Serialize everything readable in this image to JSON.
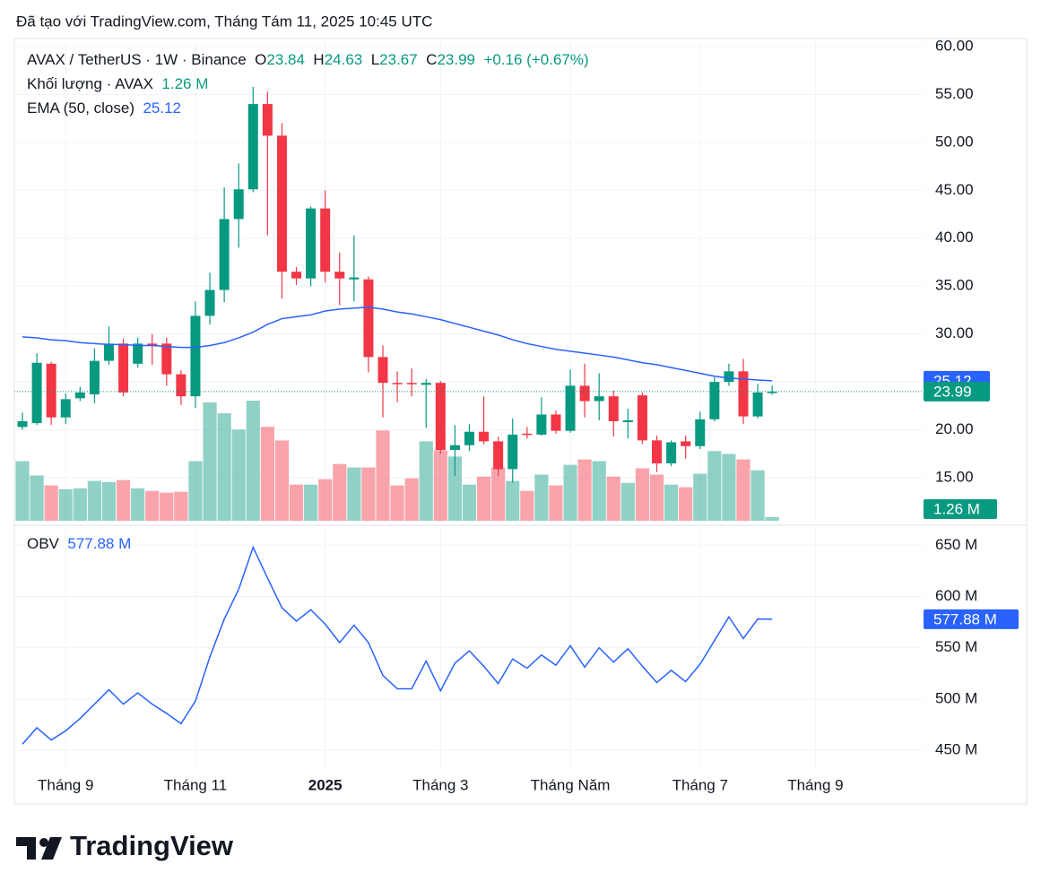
{
  "header": {
    "caption": "Đã tạo với TradingView.com, Tháng Tám 11, 2025 10:45 UTC"
  },
  "chart_data": [
    {
      "type": "candlestick",
      "legend": {
        "symbol": "AVAX / TetherUS · 1W · Binance",
        "open_key": "O",
        "high_key": "H",
        "low_key": "L",
        "close_key": "C",
        "change": "+0.16 (+0.67%)"
      },
      "up_color": "#089981",
      "down_color": "#f23645",
      "candles": {
        "open": [
          20.3,
          20.7,
          26.9,
          21.3,
          23.3,
          23.7,
          27.2,
          29.0,
          26.9,
          29.0,
          29.0,
          25.8,
          23.5,
          31.9,
          34.6,
          42.0,
          45.1,
          54.0,
          50.7,
          36.5,
          35.8,
          43.1,
          36.5,
          35.7,
          35.7,
          27.6,
          24.9,
          24.9,
          24.7,
          24.9,
          17.9,
          18.4,
          19.8,
          18.8,
          15.9,
          19.6,
          19.5,
          21.6,
          19.9,
          24.6,
          23.0,
          23.5,
          20.8,
          23.6,
          18.9,
          16.5,
          18.8,
          18.3,
          21.1,
          25.0,
          26.1,
          21.4,
          23.84
        ],
        "high": [
          21.8,
          28.0,
          27.1,
          23.8,
          24.5,
          28.5,
          30.8,
          29.5,
          29.6,
          30.0,
          29.6,
          26.2,
          33.4,
          36.4,
          45.3,
          47.8,
          55.8,
          55.3,
          52.0,
          37.0,
          43.3,
          45.0,
          38.5,
          40.3,
          36.0,
          28.8,
          26.1,
          26.4,
          25.3,
          25.1,
          20.5,
          20.6,
          23.5,
          19.3,
          21.2,
          20.3,
          23.4,
          22.0,
          26.3,
          26.9,
          25.9,
          24.1,
          22.2,
          23.9,
          19.4,
          18.9,
          19.4,
          21.9,
          25.5,
          26.9,
          27.4,
          24.8,
          24.63
        ],
        "low": [
          20.0,
          20.5,
          20.5,
          20.6,
          23.0,
          22.8,
          26.8,
          23.5,
          26.5,
          26.8,
          24.6,
          22.6,
          22.3,
          31.0,
          33.3,
          39.0,
          44.8,
          40.3,
          33.7,
          35.1,
          35.0,
          35.4,
          33.0,
          33.4,
          26.0,
          21.3,
          22.9,
          23.5,
          20.2,
          17.5,
          15.2,
          17.8,
          18.5,
          15.2,
          14.5,
          19.1,
          19.4,
          19.6,
          19.7,
          21.3,
          21.0,
          19.3,
          19.1,
          18.5,
          15.6,
          16.2,
          17.0,
          18.0,
          20.9,
          24.6,
          20.6,
          21.2,
          23.67
        ],
        "close": [
          20.9,
          27.0,
          21.3,
          23.2,
          23.9,
          27.2,
          29.0,
          23.9,
          29.0,
          28.8,
          25.8,
          23.5,
          31.9,
          34.6,
          42.0,
          45.1,
          54.0,
          50.7,
          36.5,
          35.8,
          43.1,
          36.5,
          35.8,
          35.9,
          27.6,
          24.9,
          24.8,
          24.8,
          24.9,
          17.9,
          18.4,
          19.8,
          18.8,
          15.9,
          19.5,
          19.5,
          21.6,
          19.9,
          24.6,
          23.0,
          23.5,
          20.9,
          21.0,
          18.9,
          16.5,
          18.7,
          18.3,
          21.1,
          25.0,
          26.1,
          21.4,
          23.9,
          23.99
        ]
      },
      "ema": {
        "name": "EMA (50, close)",
        "color": "#2962ff",
        "values": [
          29.7,
          29.6,
          29.4,
          29.3,
          29.1,
          29.0,
          28.9,
          28.9,
          28.8,
          28.8,
          28.7,
          28.6,
          28.6,
          28.8,
          29.1,
          29.6,
          30.2,
          31.0,
          31.6,
          31.8,
          32.0,
          32.4,
          32.6,
          32.7,
          32.8,
          32.6,
          32.3,
          32.1,
          31.8,
          31.5,
          31.1,
          30.7,
          30.3,
          29.9,
          29.4,
          29.0,
          28.7,
          28.4,
          28.2,
          28.0,
          27.8,
          27.6,
          27.3,
          27.0,
          26.8,
          26.5,
          26.2,
          25.9,
          25.6,
          25.4,
          25.3,
          25.2,
          25.12
        ]
      },
      "volume": {
        "name": "Khối lượng · AVAX",
        "values": [
          20.8,
          15.8,
          12.3,
          11.0,
          11.3,
          13.9,
          13.5,
          14.2,
          11.3,
          10.4,
          9.8,
          10.1,
          20.8,
          41.3,
          37.5,
          31.8,
          41.9,
          32.8,
          28.0,
          12.6,
          12.6,
          14.5,
          19.8,
          18.6,
          18.6,
          31.5,
          12.3,
          14.8,
          27.7,
          24.6,
          22.4,
          12.6,
          15.4,
          18.6,
          13.9,
          10.4,
          16.1,
          12.3,
          19.5,
          21.4,
          20.8,
          15.4,
          13.2,
          18.3,
          16.1,
          12.6,
          11.7,
          16.4,
          24.3,
          23.3,
          21.4,
          17.6,
          1.26
        ],
        "value_labels": [
          null,
          null,
          null,
          null,
          null,
          null,
          null,
          null,
          null,
          null,
          null,
          null,
          null,
          null,
          null,
          null,
          null,
          null,
          null,
          null,
          null,
          null,
          null,
          null,
          null,
          null,
          null,
          null,
          null,
          null,
          null,
          null,
          null,
          null,
          null,
          null,
          null,
          null,
          null,
          null,
          null,
          null,
          null,
          null,
          null,
          null,
          null,
          null,
          null,
          null,
          null,
          null,
          "1.26 M"
        ]
      },
      "ylim": [
        10.42,
        60.65
      ],
      "yticks": [
        {
          "value": 60,
          "label": "60.00"
        },
        {
          "value": 55,
          "label": "55.00"
        },
        {
          "value": 50,
          "label": "50.00"
        },
        {
          "value": 45,
          "label": "45.00"
        },
        {
          "value": 40,
          "label": "40.00"
        },
        {
          "value": 35,
          "label": "35.00"
        },
        {
          "value": 30,
          "label": "30.00"
        },
        {
          "value": 25,
          "label": "25.00"
        },
        {
          "value": 20,
          "label": "20.00"
        },
        {
          "value": 15,
          "label": "15.00"
        }
      ],
      "xlim": [
        -0.56,
        62.5
      ],
      "xticks": [
        {
          "value": 3,
          "label": "Tháng 9"
        },
        {
          "value": 12,
          "label": "Tháng 11"
        },
        {
          "value": 21,
          "label": "2025"
        },
        {
          "value": 29,
          "label": "Tháng 3"
        },
        {
          "value": 38,
          "label": "Tháng Năm"
        },
        {
          "value": 47,
          "label": "Tháng 7"
        },
        {
          "value": 55,
          "label": "Tháng 9"
        }
      ],
      "grid": true
    },
    {
      "type": "line",
      "name": "OBV",
      "color": "#2962ff",
      "values": [
        456,
        472,
        460,
        469,
        481,
        495,
        509,
        495,
        506,
        495,
        486,
        476,
        498,
        541,
        578,
        607,
        648,
        618,
        589,
        576,
        587,
        573,
        555,
        572,
        555,
        523,
        510,
        510,
        537,
        508,
        535,
        547,
        532,
        515,
        539,
        530,
        543,
        533,
        552,
        531,
        550,
        536,
        549,
        532,
        516,
        528,
        517,
        534,
        557,
        580,
        559,
        578,
        577.88
      ],
      "value_labels": [
        null,
        null,
        null,
        null,
        null,
        null,
        null,
        null,
        null,
        null,
        null,
        null,
        null,
        null,
        null,
        null,
        null,
        null,
        null,
        null,
        null,
        null,
        null,
        null,
        null,
        null,
        null,
        null,
        null,
        null,
        null,
        null,
        null,
        null,
        null,
        null,
        null,
        null,
        null,
        null,
        null,
        null,
        null,
        null,
        null,
        null,
        null,
        null,
        null,
        null,
        null,
        null,
        "577.88 M"
      ],
      "ylim": [
        430,
        666
      ],
      "yticks": [
        {
          "value": 650,
          "label": "650 M"
        },
        {
          "value": 600,
          "label": "600 M"
        },
        {
          "value": 550,
          "label": "550 M"
        },
        {
          "value": 500,
          "label": "500 M"
        },
        {
          "value": 450,
          "label": "450 M"
        }
      ],
      "grid": true
    }
  ],
  "footer": {
    "brand": "TradingView"
  }
}
